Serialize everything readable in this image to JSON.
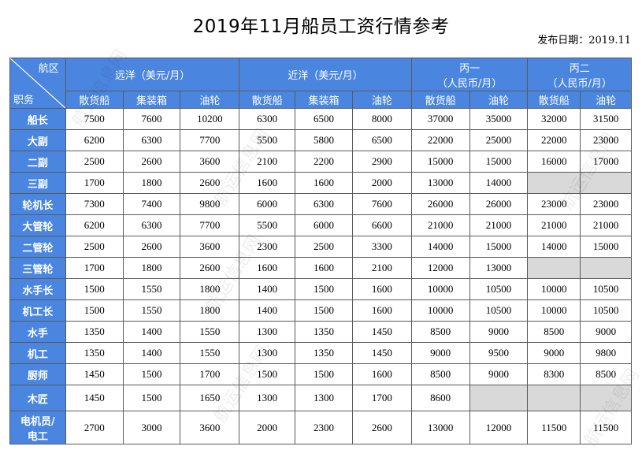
{
  "title": "2019年11月船员工资行情参考",
  "publish_date": "发布日期：2019.11",
  "header": {
    "corner_top": "航区",
    "corner_bottom": "职务",
    "groups": [
      "远洋（美元/月）",
      "近洋（美元/月）",
      "丙一\n（人民币/月）",
      "丙二\n（人民币/月）"
    ],
    "subcols": [
      "散货船",
      "集装箱",
      "油轮",
      "散货船",
      "集装箱",
      "油轮",
      "散货船",
      "油轮",
      "散货船",
      "油轮"
    ]
  },
  "rows": [
    {
      "role": "船长",
      "values": [
        "7500",
        "7600",
        "10200",
        "6300",
        "6500",
        "8000",
        "37000",
        "35000",
        "32000",
        "31500"
      ]
    },
    {
      "role": "大副",
      "values": [
        "6200",
        "6300",
        "7700",
        "5500",
        "5800",
        "6500",
        "22000",
        "25000",
        "22000",
        "23000"
      ]
    },
    {
      "role": "二副",
      "values": [
        "2500",
        "2600",
        "3600",
        "2100",
        "2200",
        "2900",
        "15000",
        "15000",
        "16000",
        "17000"
      ]
    },
    {
      "role": "三副",
      "values": [
        "1700",
        "1800",
        "2600",
        "1600",
        "1600",
        "2000",
        "13000",
        "14000",
        "",
        ""
      ]
    },
    {
      "role": "轮机长",
      "values": [
        "7300",
        "7400",
        "9800",
        "6000",
        "6300",
        "7600",
        "26000",
        "26000",
        "23000",
        "23000"
      ]
    },
    {
      "role": "大管轮",
      "values": [
        "6200",
        "6300",
        "7700",
        "5500",
        "6000",
        "6600",
        "21000",
        "21000",
        "21000",
        "21000"
      ]
    },
    {
      "role": "二管轮",
      "values": [
        "2500",
        "2600",
        "3600",
        "2300",
        "2500",
        "3300",
        "14000",
        "15000",
        "14000",
        "15000"
      ]
    },
    {
      "role": "三管轮",
      "values": [
        "1700",
        "1800",
        "2600",
        "1600",
        "1600",
        "2100",
        "12000",
        "13000",
        "",
        ""
      ]
    },
    {
      "role": "水手长",
      "values": [
        "1500",
        "1550",
        "1800",
        "1400",
        "1500",
        "1600",
        "10000",
        "10500",
        "10000",
        "10500"
      ]
    },
    {
      "role": "机工长",
      "values": [
        "1500",
        "1550",
        "1800",
        "1400",
        "1500",
        "1600",
        "10000",
        "10500",
        "10000",
        "10500"
      ]
    },
    {
      "role": "水手",
      "values": [
        "1350",
        "1400",
        "1550",
        "1300",
        "1350",
        "1450",
        "8500",
        "9000",
        "8500",
        "9000"
      ]
    },
    {
      "role": "机工",
      "values": [
        "1350",
        "1400",
        "1550",
        "1300",
        "1350",
        "1450",
        "9000",
        "9500",
        "9000",
        "9800"
      ]
    },
    {
      "role": "厨师",
      "values": [
        "1450",
        "1500",
        "1700",
        "1500",
        "1500",
        "1600",
        "8500",
        "9000",
        "8300",
        "8500"
      ]
    },
    {
      "role": "木匠",
      "values": [
        "1450",
        "1500",
        "1650",
        "1300",
        "1300",
        "1700",
        "8600",
        "",
        "",
        ""
      ]
    },
    {
      "role": "电机员/\n电工",
      "values": [
        "2700",
        "3000",
        "3600",
        "2000",
        "2300",
        "2600",
        "13000",
        "12000",
        "11500",
        "11500"
      ]
    }
  ],
  "watermark": "航运信息网",
  "colors": {
    "header_blue": "#4a86e0",
    "empty_cell": "#d9d9d9",
    "border": "#5a5a5a"
  }
}
